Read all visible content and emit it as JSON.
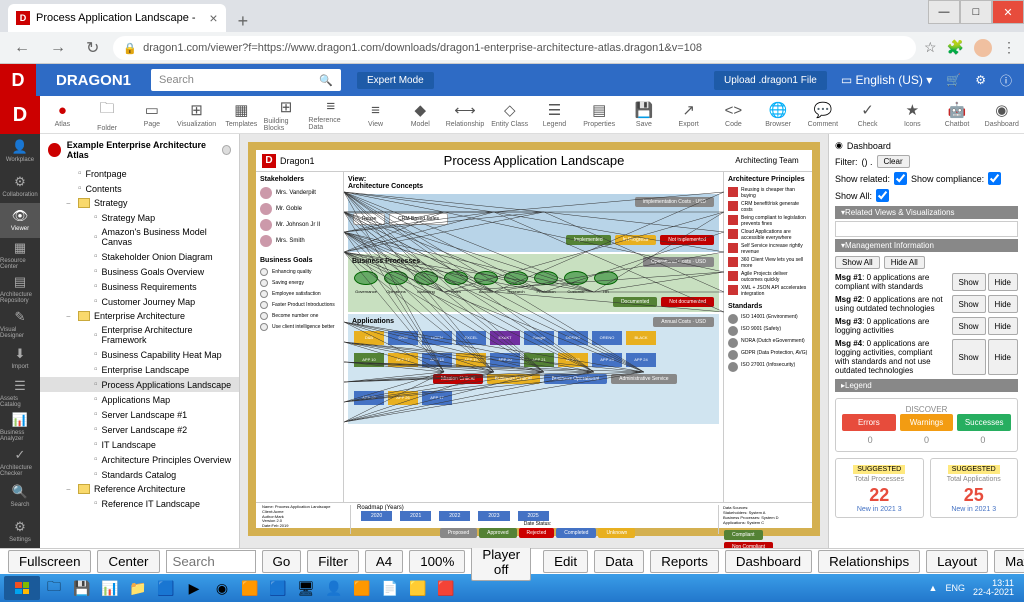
{
  "browser": {
    "tab_title": "Process Application Landscape -",
    "url": "dragon1.com/viewer?f=https://www.dragon1.com/downloads/dragon1-enterprise-architecture-atlas.dragon1&v=108"
  },
  "app": {
    "brand": "DRAGON1",
    "search_placeholder": "Search",
    "mode": "Expert Mode",
    "upload": "Upload .dragon1 File",
    "lang": "English (US)"
  },
  "toolbar": [
    "Atlas",
    "Folder",
    "Page",
    "Visualization",
    "Templates",
    "Building Blocks",
    "Reference Data",
    "View",
    "Model",
    "Relationship",
    "Entity Class",
    "Legend",
    "Properties",
    "Save",
    "Export",
    "Code",
    "Browser",
    "Comment",
    "Check",
    "Icons",
    "Chatbot",
    "Dashboard"
  ],
  "toolbar_icons": [
    "●",
    "🗀",
    "▭",
    "⊞",
    "▦",
    "⊞",
    "≡",
    "≡",
    "◆",
    "⟷",
    "◇",
    "☰",
    "▤",
    "💾",
    "↗",
    "<>",
    "🌐",
    "💬",
    "✓",
    "★",
    "🤖",
    "◉"
  ],
  "far_nav": [
    {
      "label": "Workplace",
      "icon": "👤"
    },
    {
      "label": "Collaboration",
      "icon": "⚙"
    },
    {
      "label": "Viewer",
      "icon": "👁"
    },
    {
      "label": "Resource Center",
      "icon": "▦"
    },
    {
      "label": "Architecture Repository",
      "icon": "▤"
    },
    {
      "label": "Visual Designer",
      "icon": "✎"
    },
    {
      "label": "Import",
      "icon": "⬇"
    },
    {
      "label": "Assets Catalog",
      "icon": "☰"
    },
    {
      "label": "Business Analyzer",
      "icon": "📊"
    },
    {
      "label": "Architecture Checker",
      "icon": "✓"
    },
    {
      "label": "Search",
      "icon": "🔍"
    },
    {
      "label": "Settings",
      "icon": "⚙"
    }
  ],
  "tree": {
    "root": "Example Enterprise Architecture Atlas",
    "items": [
      {
        "lv": 2,
        "type": "page",
        "label": "Frontpage"
      },
      {
        "lv": 2,
        "type": "page",
        "label": "Contents"
      },
      {
        "lv": 2,
        "type": "folder",
        "label": "Strategy",
        "open": true
      },
      {
        "lv": 3,
        "type": "page",
        "label": "Strategy Map"
      },
      {
        "lv": 3,
        "type": "page",
        "label": "Amazon's Business Model Canvas"
      },
      {
        "lv": 3,
        "type": "page",
        "label": "Stakeholder Onion Diagram"
      },
      {
        "lv": 3,
        "type": "page",
        "label": "Business Goals Overview"
      },
      {
        "lv": 3,
        "type": "page",
        "label": "Business Requirements"
      },
      {
        "lv": 3,
        "type": "page",
        "label": "Customer Journey Map"
      },
      {
        "lv": 2,
        "type": "folder",
        "label": "Enterprise Architecture",
        "open": true
      },
      {
        "lv": 3,
        "type": "page",
        "label": "Enterprise Architecture Framework"
      },
      {
        "lv": 3,
        "type": "page",
        "label": "Business Capability Heat Map"
      },
      {
        "lv": 3,
        "type": "page",
        "label": "Enterprise Landscape"
      },
      {
        "lv": 3,
        "type": "page",
        "label": "Process Applications Landscape",
        "selected": true
      },
      {
        "lv": 3,
        "type": "page",
        "label": "Applications Map"
      },
      {
        "lv": 3,
        "type": "page",
        "label": "Server Landscape #1"
      },
      {
        "lv": 3,
        "type": "page",
        "label": "Server Landscape #2"
      },
      {
        "lv": 3,
        "type": "page",
        "label": "IT Landscape"
      },
      {
        "lv": 3,
        "type": "page",
        "label": "Architecture Principles Overview"
      },
      {
        "lv": 3,
        "type": "page",
        "label": "Standards Catalog"
      },
      {
        "lv": 2,
        "type": "folder",
        "label": "Reference Architecture",
        "open": true
      },
      {
        "lv": 3,
        "type": "page",
        "label": "Reference IT Landscape"
      }
    ]
  },
  "canvas": {
    "brand": "Dragon1",
    "title": "Process Application Landscape",
    "team": "Architecting Team",
    "left_header": "Stakeholders",
    "mid_header": "View:",
    "mid_sub": "Architecture Concepts",
    "right_header": "Architecture Principles",
    "stakeholders": [
      "Mrs. Vanderpilt",
      "Mr. Goble",
      "Mr. Johnson Jr II",
      "Mrs. Smith"
    ],
    "goals_header": "Business Goals",
    "goals": [
      "Enhancing quality",
      "Saving energy",
      "Employee satisfaction",
      "Faster Product Introductions",
      "Become number one",
      "Use client intelligence better"
    ],
    "proc_header": "Business Processes",
    "procs": [
      "Governance",
      "Operations",
      "Marketing",
      "Sales",
      "Account",
      "Research",
      "Production",
      "Customer",
      "HR"
    ],
    "app_header": "Applications",
    "apps_row1": [
      {
        "label": "D&B",
        "color": "#e8b020"
      },
      {
        "label": "CRM",
        "color": "#4472c4"
      },
      {
        "label": "DOEN",
        "color": "#4472c4"
      },
      {
        "label": "EXCEL",
        "color": "#4472c4"
      },
      {
        "label": "EXAKT",
        "color": "#7030a0"
      },
      {
        "label": "Google",
        "color": "#4472c4"
      },
      {
        "label": "ORENO",
        "color": "#4472c4"
      },
      {
        "label": "ORENO",
        "color": "#4472c4"
      },
      {
        "label": "BLACK",
        "color": "#e8b020"
      }
    ],
    "apps_row2": [
      {
        "label": "APP 10",
        "color": "#548235"
      },
      {
        "label": "APP 17",
        "color": "#e8b020"
      },
      {
        "label": "APP 18",
        "color": "#4472c4"
      },
      {
        "label": "APP 19",
        "color": "#e8b020"
      },
      {
        "label": "APP 20",
        "color": "#4472c4"
      },
      {
        "label": "APP 21",
        "color": "#548235"
      },
      {
        "label": "APP 22",
        "color": "#e8b020"
      },
      {
        "label": "APP 23",
        "color": "#4472c4"
      },
      {
        "label": "APP 24",
        "color": "#4472c4"
      }
    ],
    "apps_row3": [
      {
        "label": "APP 25",
        "color": "#4472c4"
      },
      {
        "label": "APP 26",
        "color": "#e8b020"
      },
      {
        "label": "APP 17",
        "color": "#4472c4"
      }
    ],
    "principles": [
      "Reusing is cheaper than buying",
      "CRM benefit/risk generate costs",
      "Being compliant to legislation prevents fines",
      "Cloud Applications are accessible everywhere",
      "Self Service increase rightly revenue",
      "360 Client View lets you sell more",
      "Agile Projects deliver outcomes quickly",
      "XML + JSON API accelerates integration"
    ],
    "standards_label": "Standards",
    "standards": [
      "ISO 14001 (Environment)",
      "ISO 9001 (Safety)",
      "NORA (Dutch eGovernment)",
      "GDPR (Data Protection, AVG)",
      "ISO 27001 (Infosecurity)"
    ],
    "roadmap_label": "Roadmap (Years)",
    "years": [
      "2020",
      "2021",
      "2022",
      "2023",
      "2025"
    ],
    "compliance_chips": [
      {
        "t": "Compliant",
        "c": "#548235"
      },
      {
        "t": "Non Compliant",
        "c": "#c00000"
      }
    ],
    "status_chips": [
      {
        "t": "Proposed",
        "c": "#888"
      },
      {
        "t": "Approved",
        "c": "#548235"
      },
      {
        "t": "Rejected",
        "c": "#c00"
      },
      {
        "t": "Completed",
        "c": "#4472c4"
      },
      {
        "t": "Unknown",
        "c": "#e8b020"
      }
    ]
  },
  "right_panel": {
    "dashboard_label": "Dashboard",
    "filter_label": "Filter:",
    "filter_value": "() .",
    "clear": "Clear",
    "show_related": "Show related:",
    "show_compliance": "Show compliance:",
    "show_all": "Show All:",
    "section1": "Related Views & Visualizations",
    "section2": "Management Information",
    "show_all_btn": "Show All",
    "hide_all_btn": "Hide All",
    "messages": [
      "Msg #1: 0 applications are compliant with standards",
      "Msg #2: 0 applications are not using outdated technologies",
      "Msg #3: 0 applications are logging activities",
      "Msg #4: 0 applications are logging activities, compliant with standards and not use outdated technologies"
    ],
    "show_btn": "Show",
    "hide_btn": "Hide",
    "legend": "Legend",
    "discover": "DISCOVER",
    "errors": "Errors",
    "warnings": "Warnings",
    "successes": "Successes",
    "err_color": "#e74c3c",
    "warn_color": "#f39c12",
    "succ_color": "#27ae60",
    "c0": "0",
    "c1": "0",
    "c2": "0",
    "suggested": "SUGGESTED",
    "s1_label": "Total Processes",
    "s1_num": "22",
    "s1_num_color": "#e74c3c",
    "s1_new": "New in 2021 3",
    "s2_label": "Total Applications",
    "s2_num": "25",
    "s2_num_color": "#e74c3c",
    "s2_new": "New in 2021 3"
  },
  "bottom": {
    "fullscreen": "Fullscreen",
    "center": "Center",
    "search": "Search",
    "go": "Go",
    "filter": "Filter",
    "a4": "A4",
    "zoom": "100%",
    "player": "Player off",
    "edit": "Edit",
    "data": "Data",
    "reports": "Reports",
    "dashboard": "Dashboard",
    "relationships": "Relationships",
    "layout": "Layout",
    "match": "Match"
  },
  "taskbar": {
    "time": "13:11",
    "date": "22-4-2021",
    "lang": "ENG"
  }
}
